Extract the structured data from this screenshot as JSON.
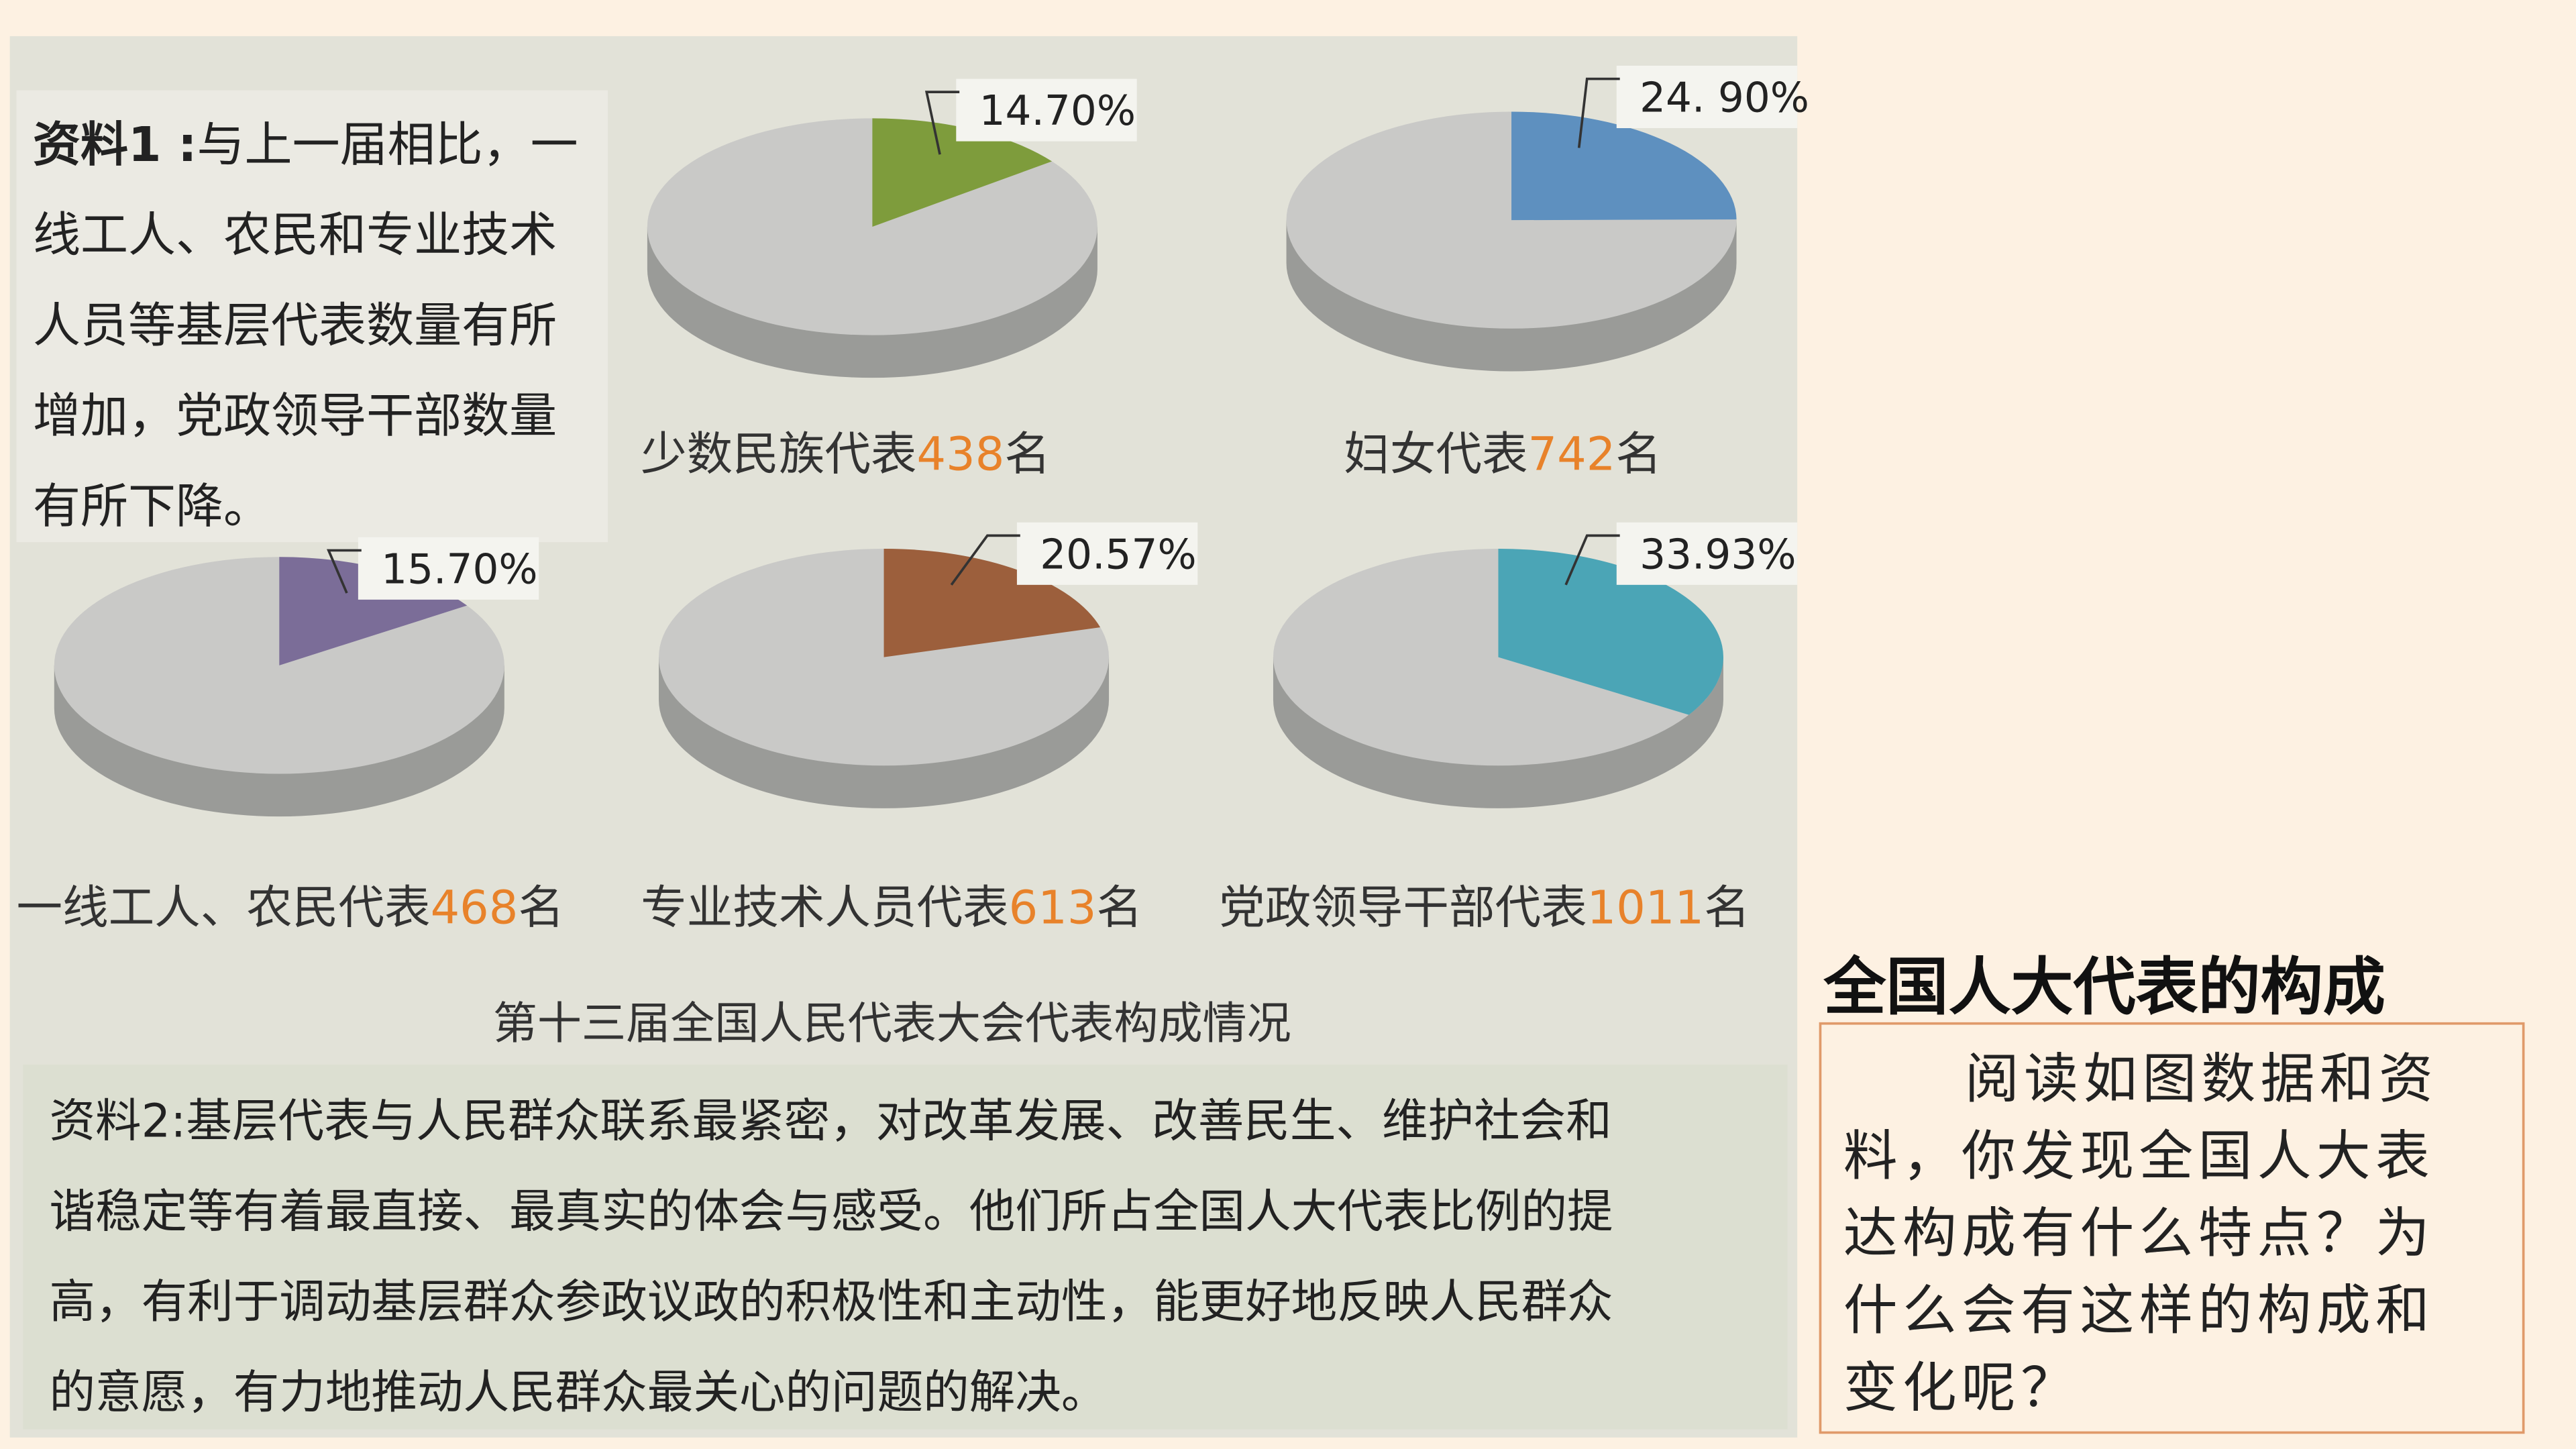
{
  "chart_data": [
    {
      "type": "pie",
      "category": "少数民族代表",
      "count": 438,
      "unit": "名",
      "values": [
        14.7
      ],
      "value_labels": [
        "14.70%"
      ],
      "color": "#7e9c3c"
    },
    {
      "type": "pie",
      "category": "妇女代表",
      "count": 742,
      "unit": "名",
      "values": [
        24.9
      ],
      "value_labels": [
        "24. 90%"
      ],
      "color": "#5e90bf"
    },
    {
      "type": "pie",
      "category": "一线工人、农民代表",
      "count": 468,
      "unit": "名",
      "values": [
        15.7
      ],
      "value_labels": [
        "15.70%"
      ],
      "color": "#7b6d98"
    },
    {
      "type": "pie",
      "category": "专业技术人员代表",
      "count": 613,
      "unit": "名",
      "values": [
        20.57
      ],
      "value_labels": [
        "20.57%"
      ],
      "color": "#9c5f3c"
    },
    {
      "type": "pie",
      "category": "党政领导干部代表",
      "count": 1011,
      "unit": "名",
      "values": [
        33.93
      ],
      "value_labels": [
        "33.93%"
      ],
      "color": "#4ba5b6"
    }
  ],
  "caption": "第十三届全国人民代表大会代表构成情况",
  "material1": {
    "label": "资料1 :",
    "lines": [
      "与上一届相比，一",
      "线工人、农民和专业技术",
      "人员等基层代表数量有所",
      "增加，党政领导干部数量",
      "有所下降。"
    ]
  },
  "material2": {
    "label": "资料2:",
    "lines": [
      "基层代表与人民群众联系最紧密，对改革发展、改善民生、维护社会和",
      "谐稳定等有着最直接、最真实的体会与感受。他们所占全国人大代表比例的提",
      "高，有利于调动基层群众参政议政的积极性和主动性，能更好地反映人民群众",
      "的意愿，有力地推动人民群众最关心的问题的解决。"
    ]
  },
  "side": {
    "title": "全国人大代表的构成",
    "lines": [
      "阅读如图数据和资",
      "料，你发现全国人大表",
      "达构成有什么特点？为",
      "什么会有这样的构成和",
      "变化呢？"
    ]
  }
}
